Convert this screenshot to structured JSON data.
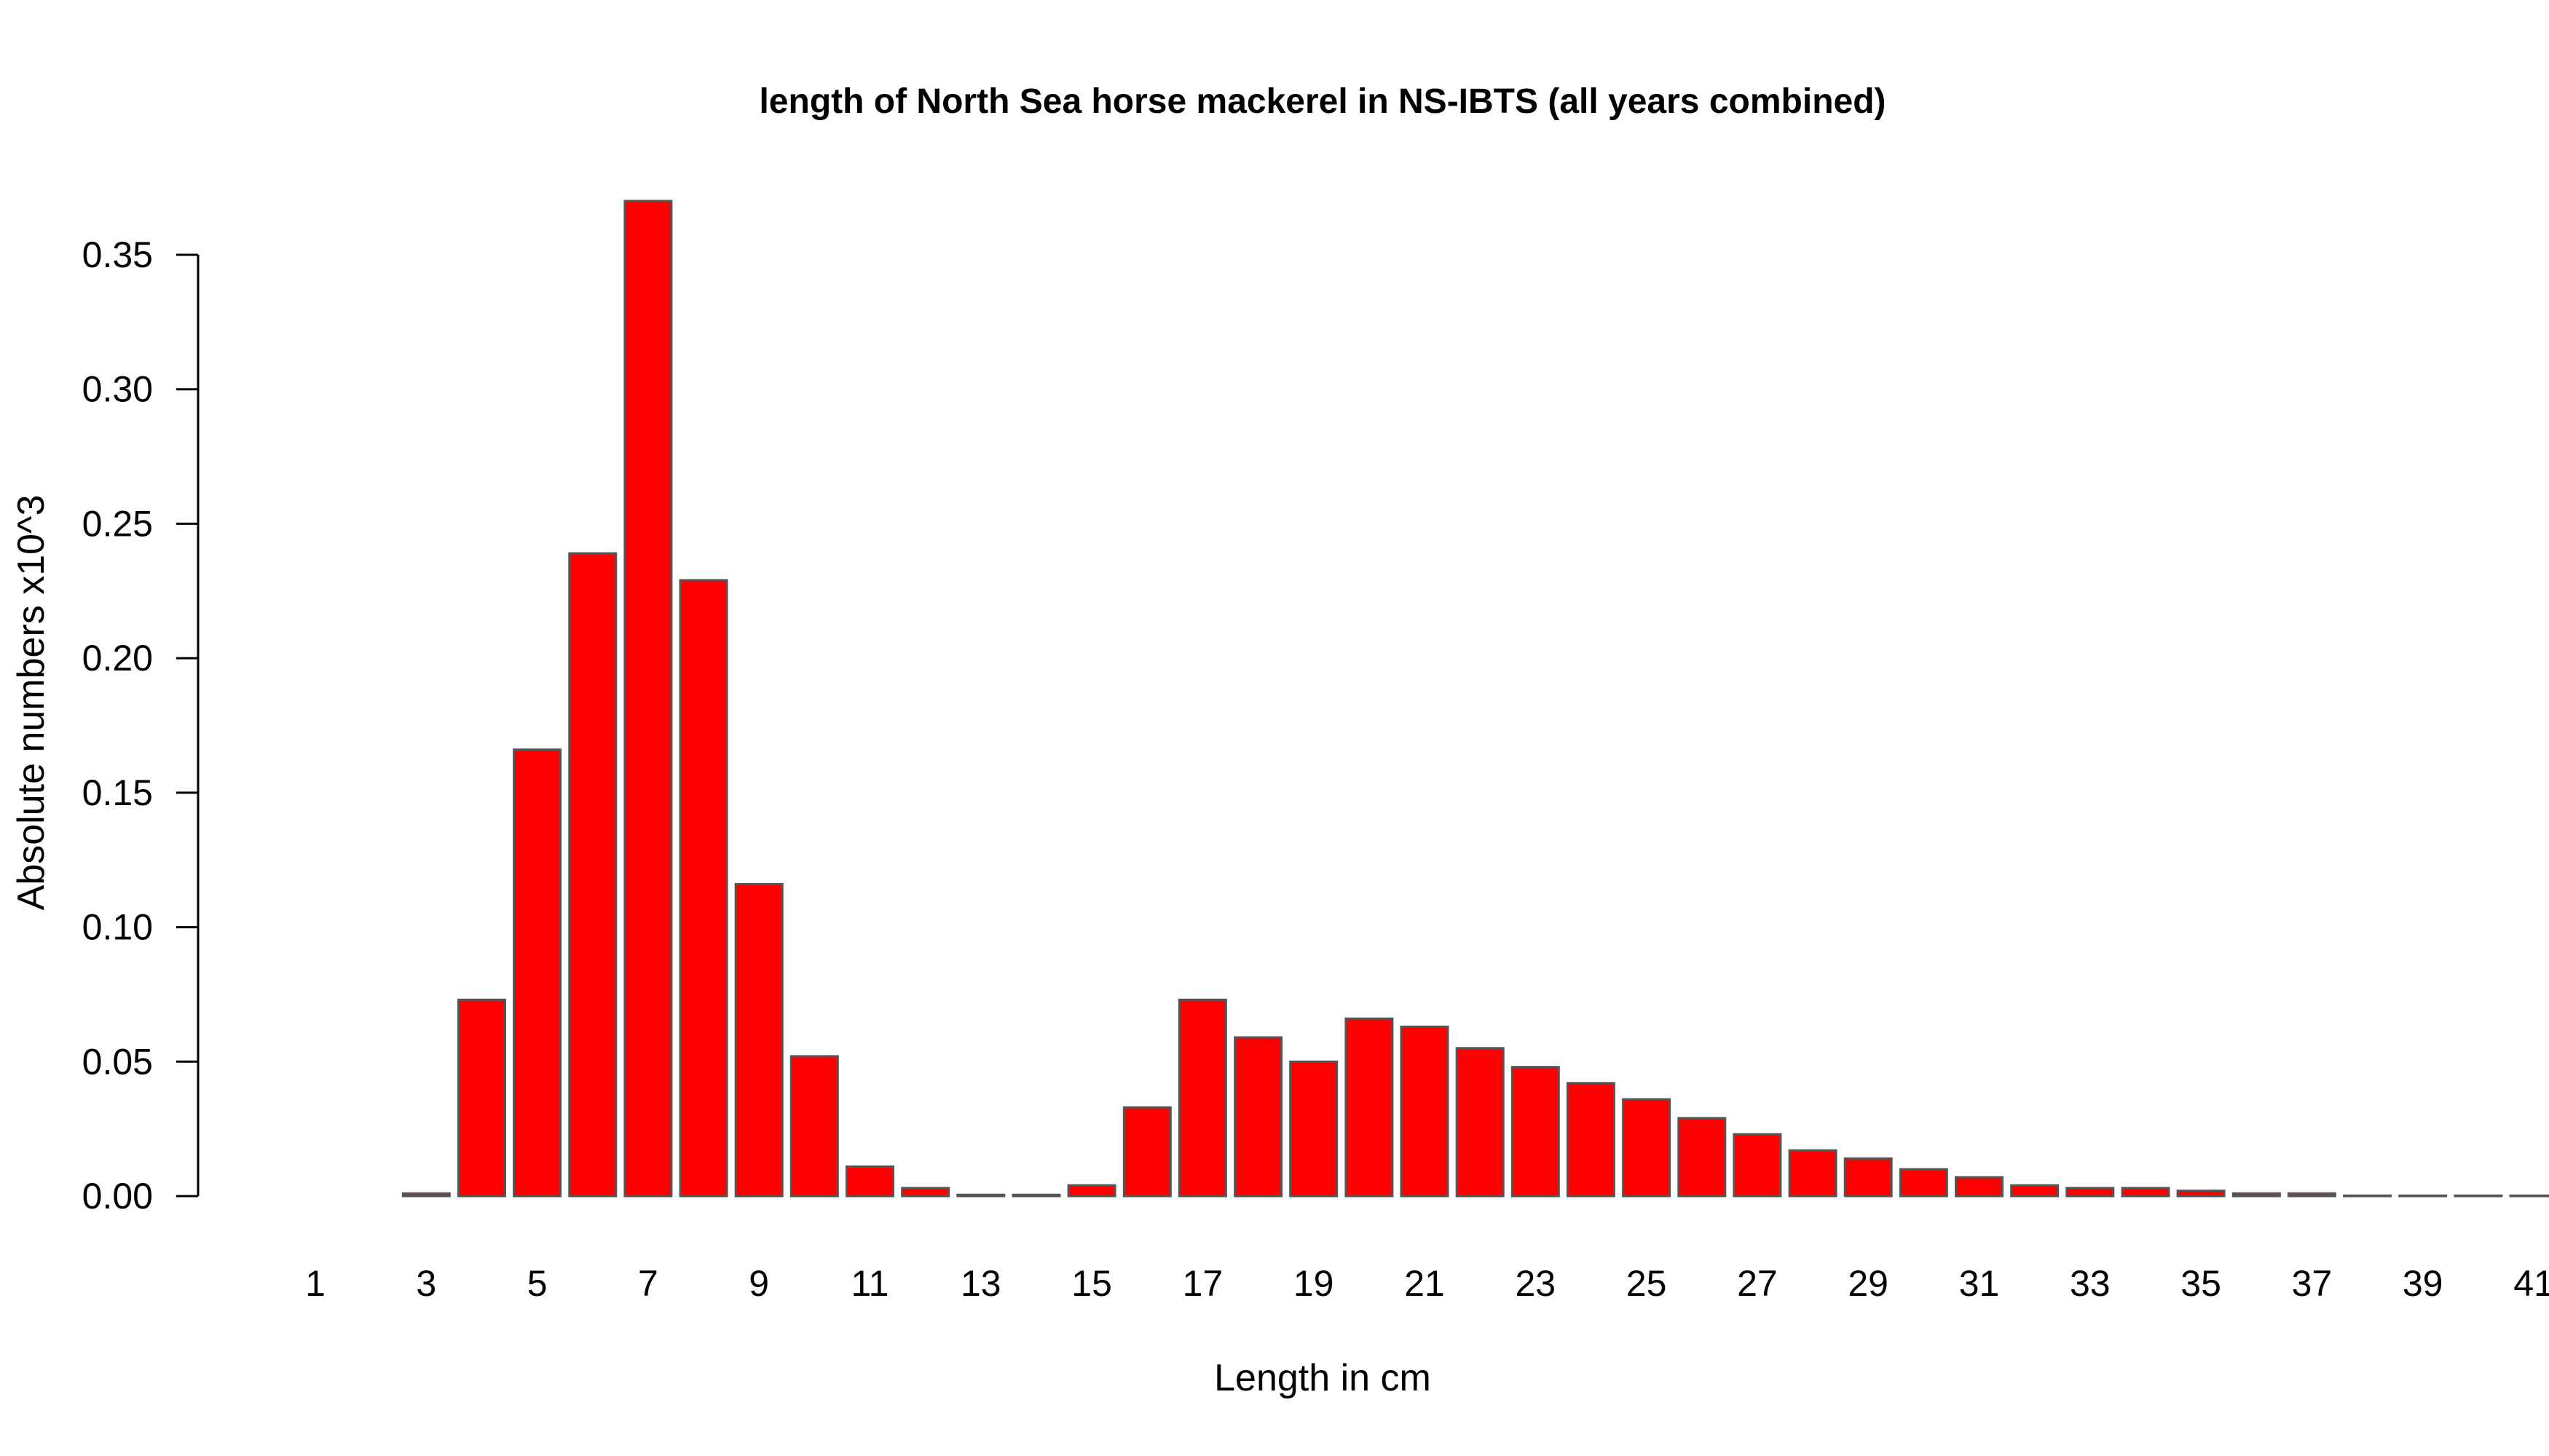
{
  "chart_data": {
    "type": "bar",
    "title": "length of North Sea horse mackerel in NS-IBTS (all years combined)",
    "xlabel": "Length in cm",
    "ylabel": "Absolute numbers x10^3",
    "categories": [
      1,
      2,
      3,
      4,
      5,
      6,
      7,
      8,
      9,
      10,
      11,
      12,
      13,
      14,
      15,
      16,
      17,
      18,
      19,
      20,
      21,
      22,
      23,
      24,
      25,
      26,
      27,
      28,
      29,
      30,
      31,
      32,
      33,
      34,
      35,
      36,
      37,
      38,
      39,
      40,
      41
    ],
    "values": [
      0.0,
      0.0,
      0.001,
      0.073,
      0.166,
      0.239,
      0.37,
      0.229,
      0.116,
      0.052,
      0.011,
      0.003,
      0.0005,
      0.0005,
      0.004,
      0.033,
      0.073,
      0.059,
      0.05,
      0.066,
      0.063,
      0.055,
      0.048,
      0.042,
      0.036,
      0.029,
      0.023,
      0.017,
      0.014,
      0.01,
      0.007,
      0.004,
      0.003,
      0.003,
      0.002,
      0.001,
      0.001,
      0.0002,
      0.0002,
      0.0002,
      0.0002
    ],
    "xtick_labels": [
      "1",
      "3",
      "5",
      "7",
      "9",
      "11",
      "13",
      "15",
      "17",
      "19",
      "21",
      "23",
      "25",
      "27",
      "29",
      "31",
      "33",
      "35",
      "37",
      "39",
      "41"
    ],
    "yticks": [
      0.0,
      0.05,
      0.1,
      0.15,
      0.2,
      0.25,
      0.3,
      0.35
    ],
    "ytick_labels": [
      "0.00",
      "0.05",
      "0.10",
      "0.15",
      "0.20",
      "0.25",
      "0.30",
      "0.35"
    ],
    "ylim": [
      0,
      0.37
    ],
    "bar_color": "#ff0000",
    "bar_edge_color": "#555555",
    "grid": false
  }
}
